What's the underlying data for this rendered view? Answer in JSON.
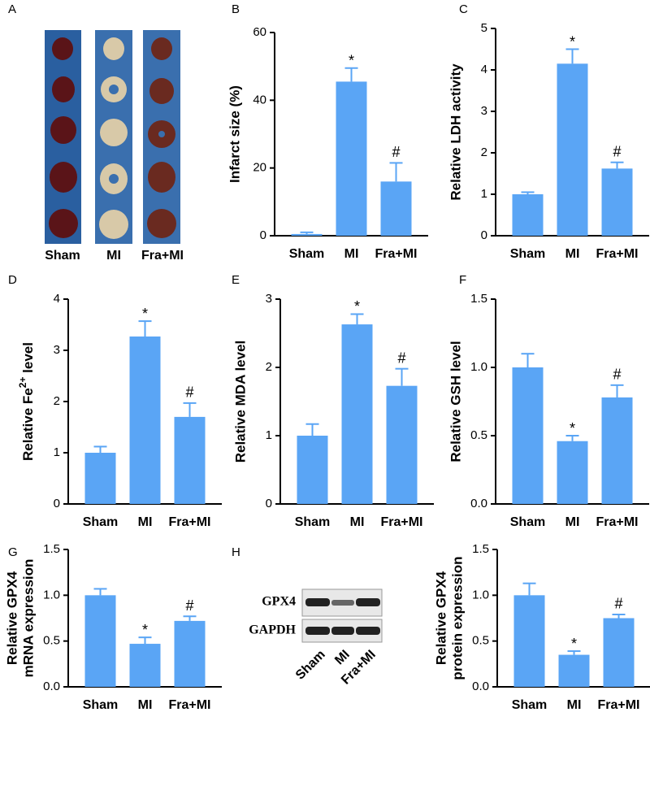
{
  "panel_a": {
    "label": "A",
    "categories": [
      "Sham",
      "MI",
      "Fra+MI"
    ]
  },
  "panel_h": {
    "label": "H",
    "bands": [
      "GPX4",
      "GAPDH"
    ],
    "lanes": [
      "Sham",
      "MI",
      "Fra+MI"
    ]
  },
  "chart_data": [
    {
      "type": "bar",
      "label": "B",
      "ylabel": [
        "Infarct size (%)"
      ],
      "categories": [
        "Sham",
        "MI",
        "Fra+MI"
      ],
      "values": [
        0.5,
        45.5,
        16
      ],
      "errors": [
        0.5,
        4,
        5.5
      ],
      "annotations": [
        null,
        "*",
        "#"
      ],
      "color": "#5aa5f5",
      "ylim": [
        0,
        60
      ],
      "yticks": [
        0,
        20,
        40,
        60
      ]
    },
    {
      "type": "bar",
      "label": "C",
      "ylabel": [
        "Relative LDH activity"
      ],
      "categories": [
        "Sham",
        "MI",
        "Fra+MI"
      ],
      "values": [
        1.0,
        4.15,
        1.62
      ],
      "errors": [
        0.05,
        0.35,
        0.15
      ],
      "annotations": [
        null,
        "*",
        "#"
      ],
      "color": "#5aa5f5",
      "ylim": [
        0,
        5
      ],
      "yticks": [
        0,
        1,
        2,
        3,
        4,
        5
      ]
    },
    {
      "type": "bar",
      "label": "D",
      "ylabel": [
        "Relative Fe",
        "2+",
        " level"
      ],
      "categories": [
        "Sham",
        "MI",
        "Fra+MI"
      ],
      "values": [
        1.0,
        3.27,
        1.7
      ],
      "errors": [
        0.12,
        0.3,
        0.27
      ],
      "annotations": [
        null,
        "*",
        "#"
      ],
      "color": "#5aa5f5",
      "ylim": [
        0,
        4
      ],
      "yticks": [
        0,
        1,
        2,
        3,
        4
      ]
    },
    {
      "type": "bar",
      "label": "E",
      "ylabel": [
        "Relative MDA level"
      ],
      "categories": [
        "Sham",
        "MI",
        "Fra+MI"
      ],
      "values": [
        1.0,
        2.63,
        1.73
      ],
      "errors": [
        0.17,
        0.15,
        0.25
      ],
      "annotations": [
        null,
        "*",
        "#"
      ],
      "color": "#5aa5f5",
      "ylim": [
        0,
        3
      ],
      "yticks": [
        0,
        1,
        2,
        3
      ]
    },
    {
      "type": "bar",
      "label": "F",
      "ylabel": [
        "Relative GSH level"
      ],
      "categories": [
        "Sham",
        "MI",
        "Fra+MI"
      ],
      "values": [
        1.0,
        0.46,
        0.78
      ],
      "errors": [
        0.1,
        0.04,
        0.09
      ],
      "annotations": [
        null,
        "*",
        "#"
      ],
      "color": "#5aa5f5",
      "ylim": [
        0,
        1.5
      ],
      "yticks": [
        {
          "value": 0,
          "label": "0.0"
        },
        0.5,
        {
          "value": 1,
          "label": "1.0"
        },
        1.5
      ]
    },
    {
      "type": "bar",
      "label": "G",
      "ylabel": [
        "Relative GPX4",
        "mRNA expression"
      ],
      "categories": [
        "Sham",
        "MI",
        "Fra+MI"
      ],
      "values": [
        1.0,
        0.47,
        0.72
      ],
      "errors": [
        0.07,
        0.07,
        0.05
      ],
      "annotations": [
        null,
        "*",
        "#"
      ],
      "color": "#5aa5f5",
      "ylim": [
        0,
        1.5
      ],
      "yticks": [
        {
          "value": 0,
          "label": "0.0"
        },
        0.5,
        {
          "value": 1,
          "label": "1.0"
        },
        1.5
      ]
    },
    {
      "type": "bar",
      "ylabel": [
        "Relative GPX4",
        "protein expression"
      ],
      "categories": [
        "Sham",
        "MI",
        "Fra+MI"
      ],
      "values": [
        1.0,
        0.35,
        0.75
      ],
      "errors": [
        0.13,
        0.04,
        0.04
      ],
      "annotations": [
        null,
        "*",
        "#"
      ],
      "color": "#5aa5f5",
      "ylim": [
        0,
        1.5
      ],
      "yticks": [
        {
          "value": 0,
          "label": "0.0"
        },
        0.5,
        {
          "value": 1,
          "label": "1.0"
        },
        1.5
      ]
    }
  ]
}
